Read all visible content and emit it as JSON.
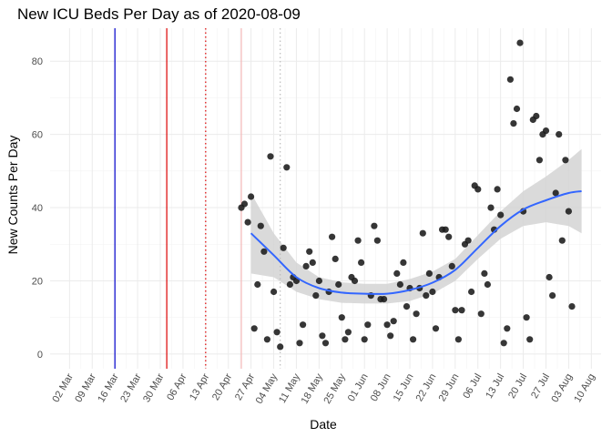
{
  "chart_data": {
    "type": "scatter",
    "title": "New ICU Beds Per Day as of 2020-08-09",
    "xlabel": "Date",
    "ylabel": "New Counts Per Day",
    "xlim": [
      "2020-02-25",
      "2020-08-13"
    ],
    "ylim": [
      -4,
      89
    ],
    "y_ticks": [
      0,
      20,
      40,
      60,
      80
    ],
    "x_ticks": [
      {
        "date": "2020-03-02",
        "label": "02 Mar"
      },
      {
        "date": "2020-03-09",
        "label": "09 Mar"
      },
      {
        "date": "2020-03-16",
        "label": "16 Mar"
      },
      {
        "date": "2020-03-23",
        "label": "23 Mar"
      },
      {
        "date": "2020-03-30",
        "label": "30 Mar"
      },
      {
        "date": "2020-04-06",
        "label": "06 Apr"
      },
      {
        "date": "2020-04-13",
        "label": "13 Apr"
      },
      {
        "date": "2020-04-20",
        "label": "20 Apr"
      },
      {
        "date": "2020-04-27",
        "label": "27 Apr"
      },
      {
        "date": "2020-05-04",
        "label": "04 May"
      },
      {
        "date": "2020-05-11",
        "label": "11 May"
      },
      {
        "date": "2020-05-18",
        "label": "18 May"
      },
      {
        "date": "2020-05-25",
        "label": "25 May"
      },
      {
        "date": "2020-06-01",
        "label": "01 Jun"
      },
      {
        "date": "2020-06-08",
        "label": "08 Jun"
      },
      {
        "date": "2020-06-15",
        "label": "15 Jun"
      },
      {
        "date": "2020-06-22",
        "label": "22 Jun"
      },
      {
        "date": "2020-06-29",
        "label": "29 Jun"
      },
      {
        "date": "2020-07-06",
        "label": "06 Jul"
      },
      {
        "date": "2020-07-13",
        "label": "13 Jul"
      },
      {
        "date": "2020-07-20",
        "label": "20 Jul"
      },
      {
        "date": "2020-07-27",
        "label": "27 Jul"
      },
      {
        "date": "2020-08-03",
        "label": "03 Aug"
      },
      {
        "date": "2020-08-10",
        "label": "10 Aug"
      }
    ],
    "grid": true,
    "legend": "none",
    "vlines": [
      {
        "date": "2020-03-16",
        "color": "#0000cc",
        "style": "solid"
      },
      {
        "date": "2020-04-01",
        "color": "#dd0000",
        "style": "solid"
      },
      {
        "date": "2020-04-13",
        "color": "#dd0000",
        "style": "dotted"
      },
      {
        "date": "2020-04-24",
        "color": "#f4b8b8",
        "style": "solid"
      },
      {
        "date": "2020-05-06",
        "color": "#bbbbbb",
        "style": "dotted"
      }
    ],
    "points": [
      {
        "x": "2020-04-24",
        "y": 40
      },
      {
        "x": "2020-04-25",
        "y": 41
      },
      {
        "x": "2020-04-26",
        "y": 36
      },
      {
        "x": "2020-04-27",
        "y": 43
      },
      {
        "x": "2020-04-28",
        "y": 7
      },
      {
        "x": "2020-04-29",
        "y": 19
      },
      {
        "x": "2020-04-30",
        "y": 35
      },
      {
        "x": "2020-05-01",
        "y": 28
      },
      {
        "x": "2020-05-02",
        "y": 4
      },
      {
        "x": "2020-05-03",
        "y": 54
      },
      {
        "x": "2020-05-04",
        "y": 17
      },
      {
        "x": "2020-05-05",
        "y": 6
      },
      {
        "x": "2020-05-06",
        "y": 2
      },
      {
        "x": "2020-05-07",
        "y": 29
      },
      {
        "x": "2020-05-08",
        "y": 51
      },
      {
        "x": "2020-05-09",
        "y": 19
      },
      {
        "x": "2020-05-10",
        "y": 21
      },
      {
        "x": "2020-05-11",
        "y": 20
      },
      {
        "x": "2020-05-12",
        "y": 3
      },
      {
        "x": "2020-05-13",
        "y": 8
      },
      {
        "x": "2020-05-14",
        "y": 24
      },
      {
        "x": "2020-05-15",
        "y": 28
      },
      {
        "x": "2020-05-16",
        "y": 25
      },
      {
        "x": "2020-05-17",
        "y": 16
      },
      {
        "x": "2020-05-18",
        "y": 20
      },
      {
        "x": "2020-05-19",
        "y": 5
      },
      {
        "x": "2020-05-20",
        "y": 3
      },
      {
        "x": "2020-05-21",
        "y": 17
      },
      {
        "x": "2020-05-22",
        "y": 32
      },
      {
        "x": "2020-05-23",
        "y": 26
      },
      {
        "x": "2020-05-24",
        "y": 19
      },
      {
        "x": "2020-05-25",
        "y": 10
      },
      {
        "x": "2020-05-26",
        "y": 4
      },
      {
        "x": "2020-05-27",
        "y": 6
      },
      {
        "x": "2020-05-28",
        "y": 21
      },
      {
        "x": "2020-05-29",
        "y": 20
      },
      {
        "x": "2020-05-30",
        "y": 31
      },
      {
        "x": "2020-05-31",
        "y": 25
      },
      {
        "x": "2020-06-01",
        "y": 4
      },
      {
        "x": "2020-06-02",
        "y": 8
      },
      {
        "x": "2020-06-03",
        "y": 16
      },
      {
        "x": "2020-06-04",
        "y": 35
      },
      {
        "x": "2020-06-05",
        "y": 31
      },
      {
        "x": "2020-06-06",
        "y": 15
      },
      {
        "x": "2020-06-07",
        "y": 15
      },
      {
        "x": "2020-06-08",
        "y": 8
      },
      {
        "x": "2020-06-09",
        "y": 5
      },
      {
        "x": "2020-06-10",
        "y": 9
      },
      {
        "x": "2020-06-11",
        "y": 22
      },
      {
        "x": "2020-06-12",
        "y": 19
      },
      {
        "x": "2020-06-13",
        "y": 25
      },
      {
        "x": "2020-06-14",
        "y": 13
      },
      {
        "x": "2020-06-15",
        "y": 18
      },
      {
        "x": "2020-06-16",
        "y": 4
      },
      {
        "x": "2020-06-17",
        "y": 11
      },
      {
        "x": "2020-06-18",
        "y": 18
      },
      {
        "x": "2020-06-19",
        "y": 33
      },
      {
        "x": "2020-06-20",
        "y": 16
      },
      {
        "x": "2020-06-21",
        "y": 22
      },
      {
        "x": "2020-06-22",
        "y": 17
      },
      {
        "x": "2020-06-23",
        "y": 7
      },
      {
        "x": "2020-06-24",
        "y": 21
      },
      {
        "x": "2020-06-25",
        "y": 34
      },
      {
        "x": "2020-06-26",
        "y": 34
      },
      {
        "x": "2020-06-27",
        "y": 32
      },
      {
        "x": "2020-06-28",
        "y": 24
      },
      {
        "x": "2020-06-29",
        "y": 12
      },
      {
        "x": "2020-06-30",
        "y": 4
      },
      {
        "x": "2020-07-01",
        "y": 12
      },
      {
        "x": "2020-07-02",
        "y": 30
      },
      {
        "x": "2020-07-03",
        "y": 31
      },
      {
        "x": "2020-07-04",
        "y": 17
      },
      {
        "x": "2020-07-05",
        "y": 46
      },
      {
        "x": "2020-07-06",
        "y": 45
      },
      {
        "x": "2020-07-07",
        "y": 11
      },
      {
        "x": "2020-07-08",
        "y": 22
      },
      {
        "x": "2020-07-09",
        "y": 19
      },
      {
        "x": "2020-07-10",
        "y": 40
      },
      {
        "x": "2020-07-11",
        "y": 34
      },
      {
        "x": "2020-07-12",
        "y": 45
      },
      {
        "x": "2020-07-13",
        "y": 38
      },
      {
        "x": "2020-07-14",
        "y": 3
      },
      {
        "x": "2020-07-15",
        "y": 7
      },
      {
        "x": "2020-07-16",
        "y": 75
      },
      {
        "x": "2020-07-17",
        "y": 63
      },
      {
        "x": "2020-07-18",
        "y": 67
      },
      {
        "x": "2020-07-19",
        "y": 85
      },
      {
        "x": "2020-07-20",
        "y": 39
      },
      {
        "x": "2020-07-21",
        "y": 10
      },
      {
        "x": "2020-07-22",
        "y": 4
      },
      {
        "x": "2020-07-23",
        "y": 64
      },
      {
        "x": "2020-07-24",
        "y": 65
      },
      {
        "x": "2020-07-25",
        "y": 53
      },
      {
        "x": "2020-07-26",
        "y": 60
      },
      {
        "x": "2020-07-27",
        "y": 61
      },
      {
        "x": "2020-07-28",
        "y": 21
      },
      {
        "x": "2020-07-29",
        "y": 16
      },
      {
        "x": "2020-07-30",
        "y": 44
      },
      {
        "x": "2020-07-31",
        "y": 60
      },
      {
        "x": "2020-08-01",
        "y": 31
      },
      {
        "x": "2020-08-02",
        "y": 53
      },
      {
        "x": "2020-08-03",
        "y": 39
      },
      {
        "x": "2020-08-04",
        "y": 13
      }
    ],
    "smooth": [
      {
        "x": "2020-04-27",
        "y": 33,
        "lo": 22,
        "hi": 44
      },
      {
        "x": "2020-05-04",
        "y": 27,
        "lo": 21,
        "hi": 33
      },
      {
        "x": "2020-05-11",
        "y": 21,
        "lo": 17,
        "hi": 25
      },
      {
        "x": "2020-05-18",
        "y": 18,
        "lo": 15,
        "hi": 21
      },
      {
        "x": "2020-05-25",
        "y": 16.8,
        "lo": 14,
        "hi": 19.6
      },
      {
        "x": "2020-06-01",
        "y": 16.5,
        "lo": 13.8,
        "hi": 19.2
      },
      {
        "x": "2020-06-08",
        "y": 16.5,
        "lo": 13.8,
        "hi": 19.2
      },
      {
        "x": "2020-06-15",
        "y": 17.5,
        "lo": 14.5,
        "hi": 20.5
      },
      {
        "x": "2020-06-22",
        "y": 19.5,
        "lo": 16.5,
        "hi": 22.5
      },
      {
        "x": "2020-06-29",
        "y": 23,
        "lo": 20,
        "hi": 26
      },
      {
        "x": "2020-07-06",
        "y": 29,
        "lo": 26,
        "hi": 32.5
      },
      {
        "x": "2020-07-13",
        "y": 35,
        "lo": 31.5,
        "hi": 39
      },
      {
        "x": "2020-07-20",
        "y": 39.5,
        "lo": 35,
        "hi": 44.5
      },
      {
        "x": "2020-07-27",
        "y": 42,
        "lo": 36,
        "hi": 48.5
      },
      {
        "x": "2020-08-03",
        "y": 44,
        "lo": 35,
        "hi": 53
      },
      {
        "x": "2020-08-07",
        "y": 44.5,
        "lo": 33,
        "hi": 56
      }
    ],
    "colors": {
      "points": "#1a1a1a",
      "smooth_line": "#3366ff",
      "ribbon": "#d3d3d3"
    }
  }
}
